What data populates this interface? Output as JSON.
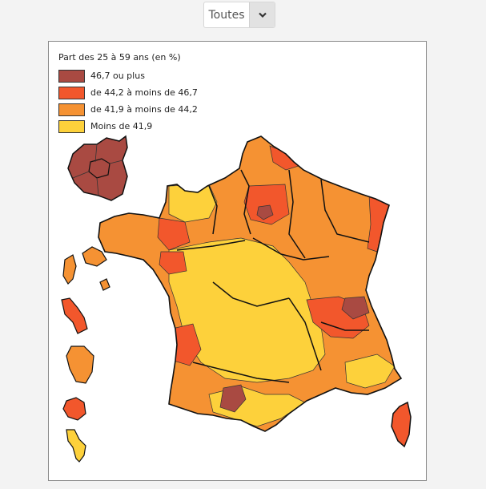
{
  "filter": {
    "selected": "Toutes",
    "arrow_icon": "chevron-down-icon"
  },
  "legend": {
    "title": "Part des 25 à 59 ans (en %)",
    "items": [
      {
        "label": "46,7 ou plus",
        "color": "#a94a42"
      },
      {
        "label": "de 44,2 à moins de 46,7",
        "color": "#f2572c"
      },
      {
        "label": "de 41,9 à moins de 44,2",
        "color": "#f59233"
      },
      {
        "label": "Moins de 41,9",
        "color": "#fdd13b"
      }
    ]
  }
}
